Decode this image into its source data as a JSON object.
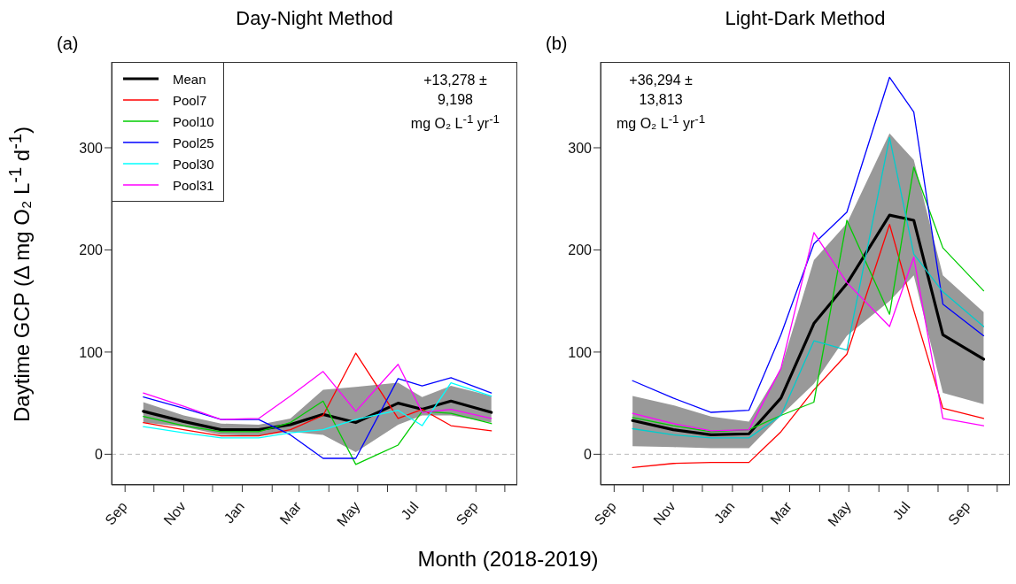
{
  "chart_data": [
    {
      "type": "line",
      "title": "Day-Night Method",
      "xlabel": "Month (2018-2019)",
      "ylabel": "Daytime GCP (Δ mg O₂ L$^{-1}$ d$^{-1}$)",
      "annotations": [
        "(a)",
        "+13,278 ±\n9,198\nmg O₂ L$^{-1}$ yr$^{-1}$"
      ],
      "x": [
        "2018-09-20",
        "2018-11-01",
        "2018-12-10",
        "2019-01-18",
        "2019-02-20",
        "2019-03-26",
        "2019-04-29",
        "2019-06-12",
        "2019-07-07",
        "2019-08-06",
        "2019-09-17"
      ],
      "series": [
        {
          "name": "Mean",
          "color": "#000000",
          "values": [
            42,
            32,
            24,
            24,
            29,
            39,
            31,
            50,
            44,
            52,
            41
          ],
          "lower": [
            31,
            27,
            19,
            18,
            22,
            19,
            2,
            29,
            38,
            38,
            31
          ],
          "upper": [
            51,
            38,
            30,
            29,
            35,
            63,
            66,
            70,
            56,
            67,
            57
          ]
        },
        {
          "name": "Pool7",
          "color": "#ff0000",
          "values": [
            31,
            24,
            18,
            18,
            24,
            38,
            99,
            35,
            44,
            28,
            23
          ]
        },
        {
          "name": "Pool10",
          "color": "#00cc00",
          "values": [
            37,
            28,
            22,
            22,
            31,
            52,
            -10,
            9,
            42,
            40,
            30
          ]
        },
        {
          "name": "Pool25",
          "color": "#0000ff",
          "values": [
            56,
            45,
            34,
            34,
            19,
            -4,
            -4,
            74,
            67,
            75,
            60
          ]
        },
        {
          "name": "Pool30",
          "color": "#00ffff",
          "values": [
            27,
            21,
            16,
            16,
            21,
            24,
            34,
            43,
            28,
            70,
            57
          ]
        },
        {
          "name": "Pool31",
          "color": "#ff00ff",
          "values": [
            60,
            47,
            34,
            35,
            57,
            81,
            42,
            88,
            41,
            44,
            35
          ]
        }
      ],
      "xlim": [
        "2018-08-18",
        "2019-10-14"
      ],
      "xticks": [
        {
          "value": "2018-09-01",
          "label": "Sep"
        },
        {
          "value": "2018-10-01",
          "label": null
        },
        {
          "value": "2018-11-01",
          "label": "Nov"
        },
        {
          "value": "2018-12-01",
          "label": null
        },
        {
          "value": "2019-01-01",
          "label": "Jan"
        },
        {
          "value": "2019-02-01",
          "label": null
        },
        {
          "value": "2019-03-01",
          "label": "Mar"
        },
        {
          "value": "2019-04-01",
          "label": null
        },
        {
          "value": "2019-05-01",
          "label": "May"
        },
        {
          "value": "2019-06-01",
          "label": null
        },
        {
          "value": "2019-07-01",
          "label": "Jul"
        },
        {
          "value": "2019-08-01",
          "label": null
        },
        {
          "value": "2019-09-01",
          "label": "Sep"
        },
        {
          "value": "2019-10-01",
          "label": null
        }
      ],
      "ylim": [
        -30,
        384
      ],
      "yticks": [
        0,
        100,
        200,
        300
      ],
      "ref_lines": [
        {
          "axis": "y",
          "value": 0,
          "color": "#bbbbbb",
          "line_style": "dashed"
        }
      ],
      "grid": false,
      "legend": "top left",
      "marker": "none",
      "line_style": "solid"
    },
    {
      "type": "line",
      "title": "Light-Dark Method",
      "annotations": [
        "(b)",
        "+36,294 ±\n13,813\nmg O₂ L$^{-1}$ yr$^{-1}$"
      ],
      "x": [
        "2018-09-20",
        "2018-11-01",
        "2018-12-10",
        "2019-01-18",
        "2019-02-20",
        "2019-03-26",
        "2019-04-29",
        "2019-06-12",
        "2019-07-07",
        "2019-08-06",
        "2019-09-17"
      ],
      "series": [
        {
          "color": "#000000",
          "values": [
            33,
            24,
            19,
            20,
            55,
            128,
            167,
            234,
            229,
            117,
            93
          ],
          "lower": [
            8,
            7,
            6,
            6,
            38,
            69,
            116,
            150,
            175,
            60,
            49
          ],
          "upper": [
            57,
            48,
            37,
            32,
            84,
            190,
            226,
            314,
            288,
            175,
            139
          ]
        },
        {
          "color": "#ff0000",
          "values": [
            -13,
            -9,
            -8,
            -8,
            22,
            63,
            98,
            225,
            141,
            45,
            35
          ]
        },
        {
          "color": "#00cc00",
          "values": [
            36,
            28,
            22,
            24,
            38,
            51,
            229,
            137,
            281,
            202,
            160
          ]
        },
        {
          "color": "#0000ff",
          "values": [
            72,
            55,
            41,
            43,
            117,
            206,
            237,
            369,
            335,
            147,
            116
          ]
        },
        {
          "color": "#00cccc",
          "values": [
            25,
            19,
            16,
            16,
            38,
            111,
            102,
            310,
            196,
            159,
            125
          ]
        },
        {
          "color": "#ff00ff",
          "values": [
            40,
            30,
            23,
            24,
            84,
            217,
            168,
            125,
            193,
            35,
            28
          ]
        }
      ],
      "xlim": [
        "2018-08-18",
        "2019-10-14"
      ],
      "xticks": [
        {
          "value": "2018-09-01",
          "label": "Sep"
        },
        {
          "value": "2018-10-01",
          "label": null
        },
        {
          "value": "2018-11-01",
          "label": "Nov"
        },
        {
          "value": "2018-12-01",
          "label": null
        },
        {
          "value": "2019-01-01",
          "label": "Jan"
        },
        {
          "value": "2019-02-01",
          "label": null
        },
        {
          "value": "2019-03-01",
          "label": "Mar"
        },
        {
          "value": "2019-04-01",
          "label": null
        },
        {
          "value": "2019-05-01",
          "label": "May"
        },
        {
          "value": "2019-06-01",
          "label": null
        },
        {
          "value": "2019-07-01",
          "label": "Jul"
        },
        {
          "value": "2019-08-01",
          "label": null
        },
        {
          "value": "2019-09-01",
          "label": "Sep"
        },
        {
          "value": "2019-10-01",
          "label": null
        }
      ],
      "ylim": [
        -30,
        384
      ],
      "yticks": [
        0,
        100,
        200,
        300
      ],
      "ref_lines": [
        {
          "axis": "y",
          "value": 0,
          "color": "#bbbbbb",
          "line_style": "dashed"
        }
      ],
      "grid": false,
      "marker": "none",
      "line_style": "solid"
    }
  ]
}
